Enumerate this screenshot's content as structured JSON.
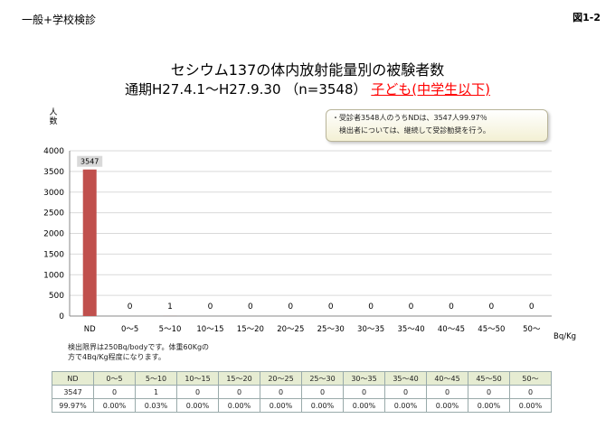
{
  "header": {
    "tag": "一般+学校検診",
    "figure_no": "図1-2"
  },
  "title": {
    "line1": "セシウム137の体内放射能量別の被験者数",
    "line2_prefix": "通期H27.4.1〜H27.9.30 （n=3548）",
    "line2_highlight": "子ども(中学生以下)"
  },
  "note": {
    "line1": "・受診者3548人のうちNDは、3547人99.97％",
    "line2": "　検出者については、継続して受診勧奨を行う。"
  },
  "detection_note": {
    "line1": "検出限界は250Bq/bodyです。体重60Kgの",
    "line2": "方で4Bq/Kg程度になります。"
  },
  "colors": {
    "bar": "#c0504d",
    "highlight": "#ff0000",
    "axis": "#888888"
  },
  "chart_data": {
    "type": "bar",
    "categories": [
      "ND",
      "0〜5",
      "5〜10",
      "10〜15",
      "15〜20",
      "20〜25",
      "25〜30",
      "30〜35",
      "35〜40",
      "40〜45",
      "45〜50",
      "50〜"
    ],
    "values": [
      3547,
      0,
      1,
      0,
      0,
      0,
      0,
      0,
      0,
      0,
      0,
      0
    ],
    "ylabel": "人数",
    "xlabel": "Bq/Kg",
    "ylim": [
      0,
      4000
    ],
    "yticks": [
      0,
      500,
      1000,
      1500,
      2000,
      2500,
      3000,
      3500,
      4000
    ],
    "grid": true
  },
  "table": {
    "headers": [
      "ND",
      "0〜5",
      "5〜10",
      "10〜15",
      "15〜20",
      "20〜25",
      "25〜30",
      "30〜35",
      "35〜40",
      "40〜45",
      "45〜50",
      "50〜"
    ],
    "counts": [
      "3547",
      "0",
      "1",
      "0",
      "0",
      "0",
      "0",
      "0",
      "0",
      "0",
      "0",
      "0"
    ],
    "percents": [
      "99.97%",
      "0.00%",
      "0.03%",
      "0.00%",
      "0.00%",
      "0.00%",
      "0.00%",
      "0.00%",
      "0.00%",
      "0.00%",
      "0.00%",
      "0.00%"
    ]
  }
}
